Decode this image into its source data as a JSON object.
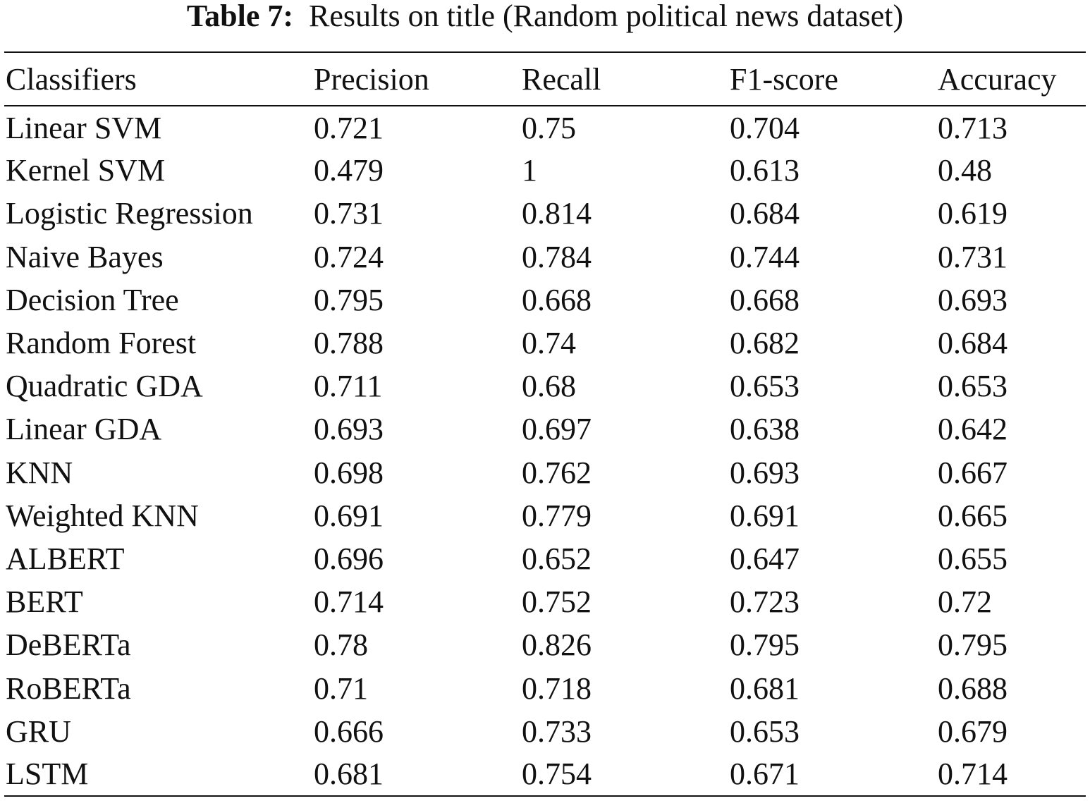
{
  "caption": {
    "label": "Table 7:",
    "text": "Results on title (Random political news dataset)"
  },
  "table": {
    "headers": [
      "Classifiers",
      "Precision",
      "Recall",
      "F1-score",
      "Accuracy"
    ],
    "rows": [
      {
        "classifier": "Linear SVM",
        "precision": "0.721",
        "recall": "0.75",
        "f1": "0.704",
        "accuracy": "0.713"
      },
      {
        "classifier": "Kernel SVM",
        "precision": "0.479",
        "recall": "1",
        "f1": "0.613",
        "accuracy": "0.48"
      },
      {
        "classifier": "Logistic Regression",
        "precision": "0.731",
        "recall": "0.814",
        "f1": "0.684",
        "accuracy": "0.619"
      },
      {
        "classifier": "Naive Bayes",
        "precision": "0.724",
        "recall": "0.784",
        "f1": "0.744",
        "accuracy": "0.731"
      },
      {
        "classifier": "Decision Tree",
        "precision": "0.795",
        "recall": "0.668",
        "f1": "0.668",
        "accuracy": "0.693"
      },
      {
        "classifier": "Random Forest",
        "precision": "0.788",
        "recall": "0.74",
        "f1": "0.682",
        "accuracy": "0.684"
      },
      {
        "classifier": "Quadratic GDA",
        "precision": "0.711",
        "recall": "0.68",
        "f1": "0.653",
        "accuracy": "0.653"
      },
      {
        "classifier": "Linear GDA",
        "precision": "0.693",
        "recall": "0.697",
        "f1": "0.638",
        "accuracy": "0.642"
      },
      {
        "classifier": "KNN",
        "precision": "0.698",
        "recall": "0.762",
        "f1": "0.693",
        "accuracy": "0.667"
      },
      {
        "classifier": "Weighted KNN",
        "precision": "0.691",
        "recall": "0.779",
        "f1": "0.691",
        "accuracy": "0.665"
      },
      {
        "classifier": "ALBERT",
        "precision": "0.696",
        "recall": "0.652",
        "f1": "0.647",
        "accuracy": "0.655"
      },
      {
        "classifier": "BERT",
        "precision": "0.714",
        "recall": "0.752",
        "f1": "0.723",
        "accuracy": "0.72"
      },
      {
        "classifier": "DeBERTa",
        "precision": "0.78",
        "recall": "0.826",
        "f1": "0.795",
        "accuracy": "0.795"
      },
      {
        "classifier": "RoBERTa",
        "precision": "0.71",
        "recall": "0.718",
        "f1": "0.681",
        "accuracy": "0.688"
      },
      {
        "classifier": "GRU",
        "precision": "0.666",
        "recall": "0.733",
        "f1": "0.653",
        "accuracy": "0.679"
      },
      {
        "classifier": "LSTM",
        "precision": "0.681",
        "recall": "0.754",
        "f1": "0.671",
        "accuracy": "0.714"
      }
    ],
    "best": {
      "precision": "Decision Tree",
      "recall": "Kernel SVM",
      "f1": "DeBERTa",
      "accuracy": "DeBERTa"
    }
  }
}
